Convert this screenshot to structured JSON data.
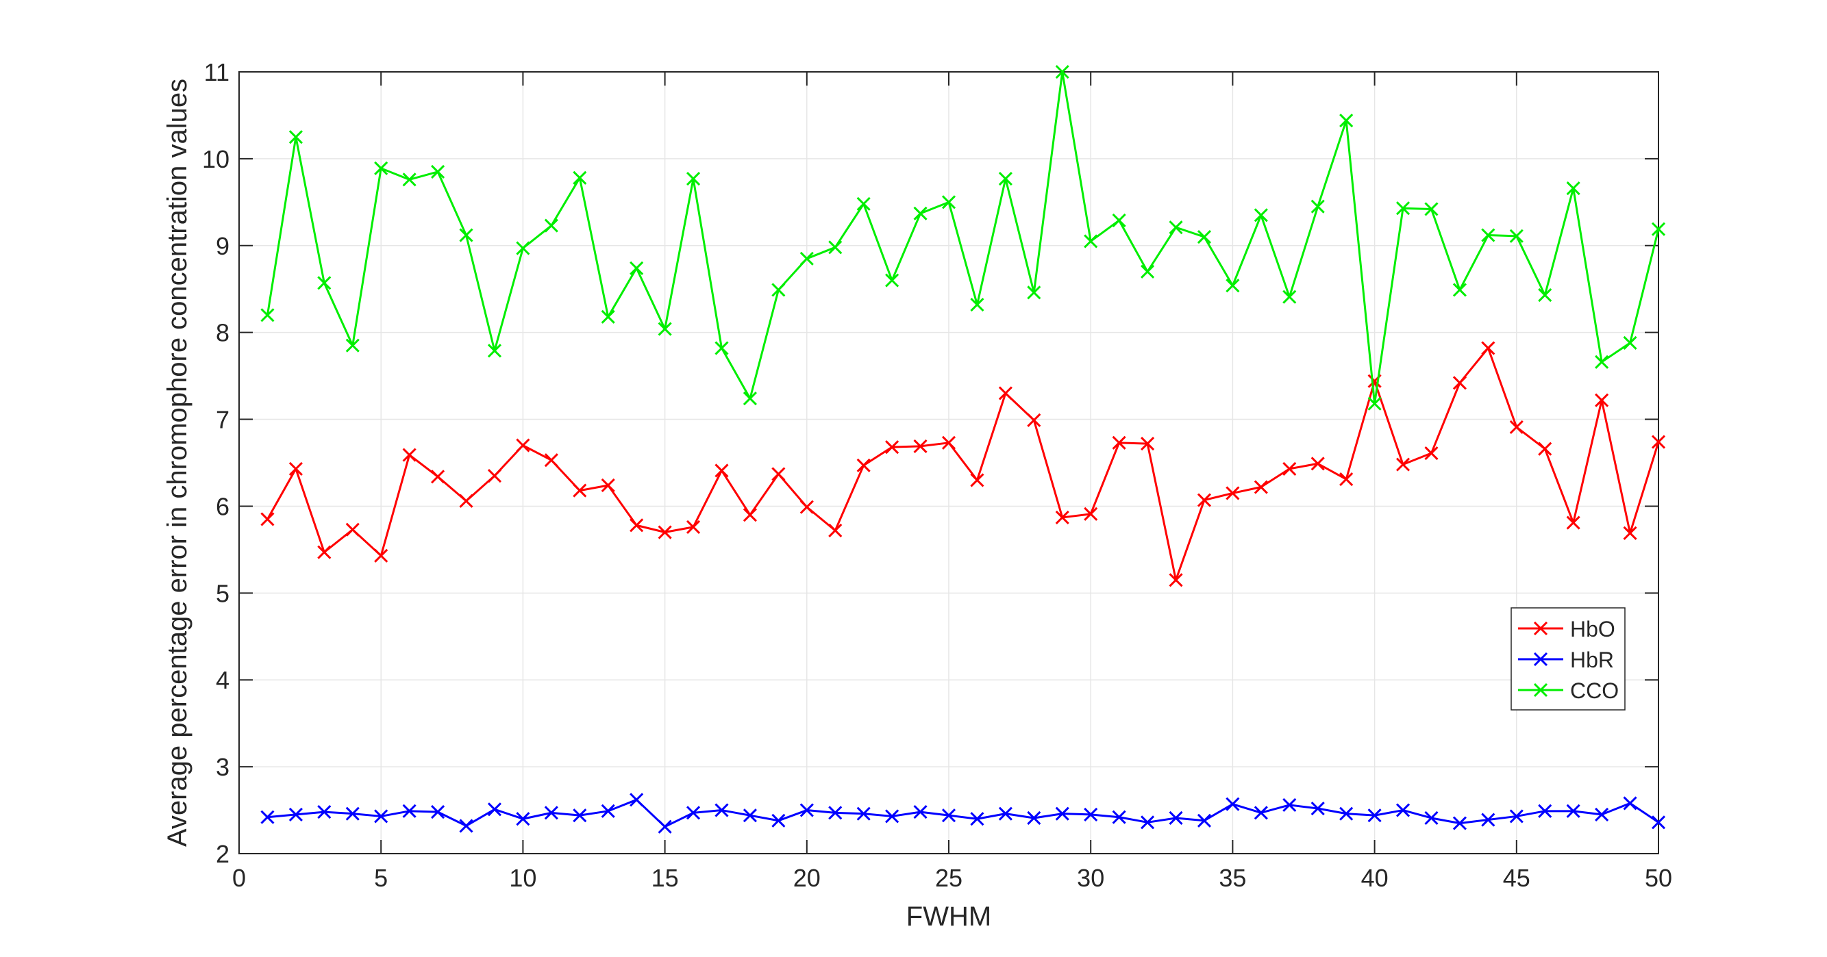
{
  "chart_data": {
    "type": "line",
    "xlabel": "FWHM",
    "ylabel": "Average percentage error in chromophore concentration values",
    "xlim": [
      0,
      50
    ],
    "ylim": [
      2,
      11
    ],
    "xticks": [
      0,
      5,
      10,
      15,
      20,
      25,
      30,
      35,
      40,
      45,
      50
    ],
    "yticks": [
      2,
      3,
      4,
      5,
      6,
      7,
      8,
      9,
      10,
      11
    ],
    "grid": true,
    "legend_position": "right, lower-middle",
    "marker": "x",
    "x": [
      1,
      2,
      3,
      4,
      5,
      6,
      7,
      8,
      9,
      10,
      11,
      12,
      13,
      14,
      15,
      16,
      17,
      18,
      19,
      20,
      21,
      22,
      23,
      24,
      25,
      26,
      27,
      28,
      29,
      30,
      31,
      32,
      33,
      34,
      35,
      36,
      37,
      38,
      39,
      40,
      41,
      42,
      43,
      44,
      45,
      46,
      47,
      48,
      49,
      50
    ],
    "series": [
      {
        "name": "HbO",
        "color": "#ff0000",
        "values": [
          5.85,
          6.43,
          5.47,
          5.73,
          5.43,
          6.59,
          6.34,
          6.06,
          6.35,
          6.7,
          6.53,
          6.18,
          6.24,
          5.78,
          5.7,
          5.76,
          6.41,
          5.9,
          6.37,
          5.99,
          5.72,
          6.47,
          6.68,
          6.69,
          6.73,
          6.3,
          7.3,
          6.99,
          5.87,
          5.91,
          6.73,
          6.72,
          5.15,
          6.07,
          6.15,
          6.22,
          6.43,
          6.49,
          6.31,
          7.44,
          6.48,
          6.61,
          7.42,
          7.82,
          6.91,
          6.66,
          5.81,
          7.22,
          5.69,
          6.74
        ]
      },
      {
        "name": "HbR",
        "color": "#0000ff",
        "values": [
          2.42,
          2.45,
          2.48,
          2.46,
          2.43,
          2.49,
          2.48,
          2.32,
          2.51,
          2.4,
          2.47,
          2.44,
          2.49,
          2.62,
          2.31,
          2.47,
          2.5,
          2.44,
          2.38,
          2.5,
          2.47,
          2.46,
          2.43,
          2.48,
          2.44,
          2.4,
          2.46,
          2.41,
          2.46,
          2.45,
          2.42,
          2.36,
          2.41,
          2.38,
          2.57,
          2.47,
          2.56,
          2.52,
          2.46,
          2.44,
          2.5,
          2.41,
          2.35,
          2.39,
          2.43,
          2.49,
          2.49,
          2.45,
          2.58,
          2.36
        ]
      },
      {
        "name": "CCO",
        "color": "#00ee00",
        "values": [
          8.2,
          10.25,
          8.57,
          7.85,
          9.89,
          9.76,
          9.85,
          9.12,
          7.79,
          8.97,
          9.23,
          9.78,
          8.18,
          8.74,
          8.04,
          9.77,
          7.82,
          7.24,
          8.49,
          8.85,
          8.98,
          9.48,
          8.6,
          9.37,
          9.5,
          8.32,
          9.77,
          8.46,
          11.0,
          9.05,
          9.29,
          8.7,
          9.21,
          9.1,
          8.54,
          9.35,
          8.41,
          9.45,
          10.44,
          7.18,
          9.43,
          9.42,
          8.49,
          9.12,
          9.11,
          8.43,
          9.66,
          7.66,
          7.88,
          9.19
        ]
      }
    ]
  }
}
